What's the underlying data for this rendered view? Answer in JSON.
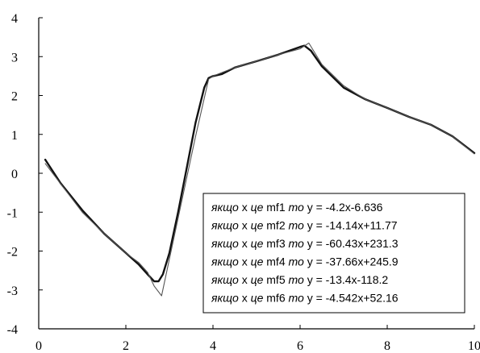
{
  "chart_data": {
    "type": "line",
    "xlim": [
      0,
      10
    ],
    "ylim": [
      -4,
      4
    ],
    "x_ticks": [
      "0",
      "2",
      "4",
      "6",
      "8",
      "10"
    ],
    "y_ticks": [
      "4",
      "3",
      "2",
      "1",
      "0",
      "-1",
      "-2",
      "-3",
      "-4"
    ],
    "grid": false,
    "series": [
      {
        "style": "thick",
        "x": [
          0.15,
          0.5,
          1.0,
          1.5,
          2.0,
          2.3,
          2.5,
          2.65,
          2.75,
          2.85,
          3.0,
          3.2,
          3.4,
          3.6,
          3.8,
          3.9,
          4.0,
          4.2,
          4.5,
          5.0,
          5.5,
          6.0,
          6.1,
          6.25,
          6.5,
          7.0,
          7.5,
          8.0,
          8.5,
          9.0,
          9.5,
          10.0
        ],
        "y": [
          0.35,
          -0.25,
          -0.95,
          -1.55,
          -2.05,
          -2.35,
          -2.6,
          -2.78,
          -2.78,
          -2.6,
          -2.05,
          -1.0,
          0.15,
          1.3,
          2.2,
          2.45,
          2.5,
          2.55,
          2.72,
          2.88,
          3.05,
          3.25,
          3.28,
          3.15,
          2.75,
          2.2,
          1.9,
          1.68,
          1.45,
          1.25,
          0.95,
          0.52
        ]
      },
      {
        "style": "thin",
        "x": [
          0.15,
          1.0,
          1.5,
          2.0,
          2.3,
          2.5,
          2.65,
          2.82,
          3.2,
          3.6,
          3.9,
          4.0,
          4.5,
          5.0,
          5.5,
          6.0,
          6.2,
          6.5,
          7.0,
          7.5,
          8.0,
          8.5,
          9.0,
          9.5,
          10.0
        ],
        "y": [
          0.25,
          -1.0,
          -1.55,
          -2.05,
          -2.3,
          -2.55,
          -2.9,
          -3.15,
          -1.15,
          0.95,
          2.42,
          2.5,
          2.72,
          2.88,
          3.05,
          3.2,
          3.35,
          2.8,
          2.25,
          1.9,
          1.68,
          1.45,
          1.25,
          0.95,
          0.5
        ]
      }
    ],
    "legend_position": "bottom-right",
    "legend": [
      {
        "prefix": "якщо",
        "var": "x",
        "mid": "це",
        "mf": "mf1",
        "then": "то",
        "formula": "y = -4.2x-6.636"
      },
      {
        "prefix": "якщо",
        "var": "x",
        "mid": "це",
        "mf": "mf2",
        "then": "то",
        "formula": "y = -14.14x+11.77"
      },
      {
        "prefix": "якщо",
        "var": "x",
        "mid": "це",
        "mf": "mf3",
        "then": "то",
        "formula": "y = -60.43x+231.3"
      },
      {
        "prefix": "якщо",
        "var": "x",
        "mid": "це",
        "mf": "mf4",
        "then": "то",
        "formula": "y = -37.66x+245.9"
      },
      {
        "prefix": "якщо",
        "var": "x",
        "mid": "це",
        "mf": "mf5",
        "then": "то",
        "formula": "y = -13.4x-118.2"
      },
      {
        "prefix": "якщо",
        "var": "x",
        "mid": "це",
        "mf": "mf6",
        "then": "то",
        "formula": "y = -4.542x+52.16"
      }
    ]
  }
}
